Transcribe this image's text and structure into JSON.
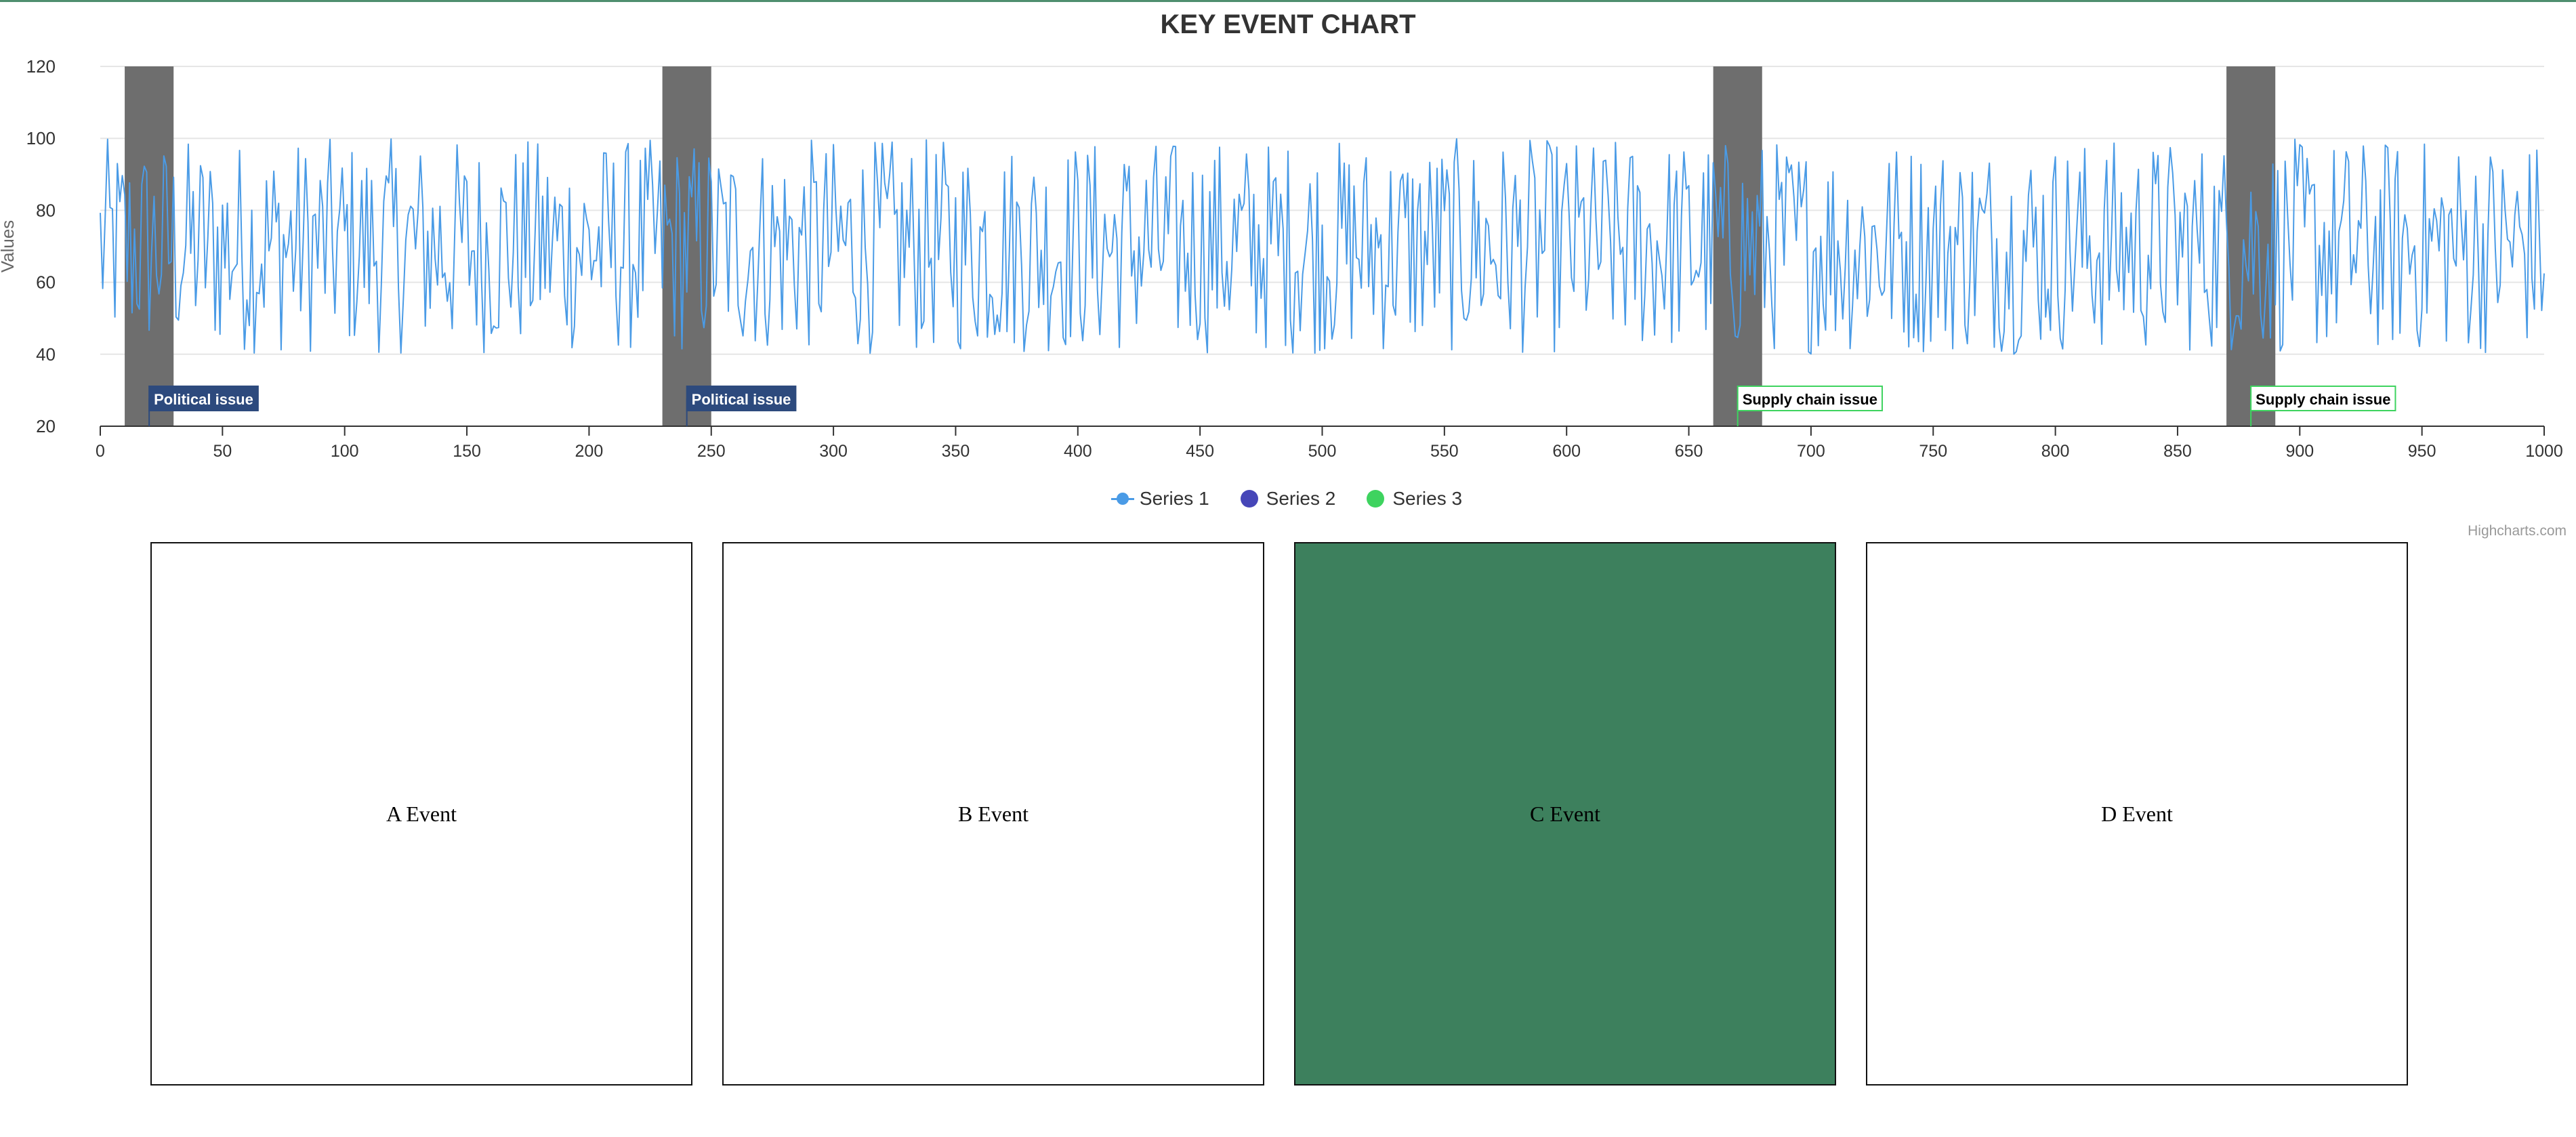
{
  "chart_data": {
    "type": "line",
    "title": "KEY EVENT CHART",
    "xlabel": "",
    "ylabel": "Values",
    "xlim": [
      0,
      1000
    ],
    "ylim": [
      20,
      120
    ],
    "x_ticks": [
      0,
      50,
      100,
      150,
      200,
      250,
      300,
      350,
      400,
      450,
      500,
      550,
      600,
      650,
      700,
      750,
      800,
      850,
      900,
      950,
      1000
    ],
    "y_ticks": [
      20,
      40,
      60,
      80,
      100,
      120
    ],
    "grid": "horizontal",
    "legend_position": "bottom-center",
    "series": [
      {
        "name": "Series 1",
        "color": "#4a9be6",
        "type": "line",
        "x_range": [
          0,
          1000
        ],
        "value_range": [
          40,
          100
        ],
        "note_values": "dense pseudo-random oscillation between ~40 and ~100"
      },
      {
        "name": "Series 2",
        "color": "#4646b8",
        "type": "flags"
      },
      {
        "name": "Series 3",
        "color": "#3ed35f",
        "type": "flags"
      }
    ],
    "plot_bands": [
      {
        "from": 10,
        "to": 30,
        "color": "#6e6e6e"
      },
      {
        "from": 230,
        "to": 250,
        "color": "#6e6e6e"
      },
      {
        "from": 660,
        "to": 680,
        "color": "#6e6e6e"
      },
      {
        "from": 870,
        "to": 890,
        "color": "#6e6e6e"
      }
    ],
    "flags": [
      {
        "x": 20,
        "text": "Political issue",
        "series": "Series 2"
      },
      {
        "x": 240,
        "text": "Political issue",
        "series": "Series 2"
      },
      {
        "x": 670,
        "text": "Supply chain issue",
        "series": "Series 3"
      },
      {
        "x": 880,
        "text": "Supply chain issue",
        "series": "Series 3"
      }
    ]
  },
  "legend": {
    "items": [
      {
        "label": "Series 1",
        "color": "#4a9be6"
      },
      {
        "label": "Series 2",
        "color": "#4646b8"
      },
      {
        "label": "Series 3",
        "color": "#3ed35f"
      }
    ]
  },
  "credits": "Highcharts.com",
  "events": {
    "items": [
      {
        "label": "A Event",
        "selected": false
      },
      {
        "label": "B Event",
        "selected": false
      },
      {
        "label": "C Event",
        "selected": true
      },
      {
        "label": "D Event",
        "selected": false
      }
    ],
    "selected_color": "#3d805d"
  }
}
